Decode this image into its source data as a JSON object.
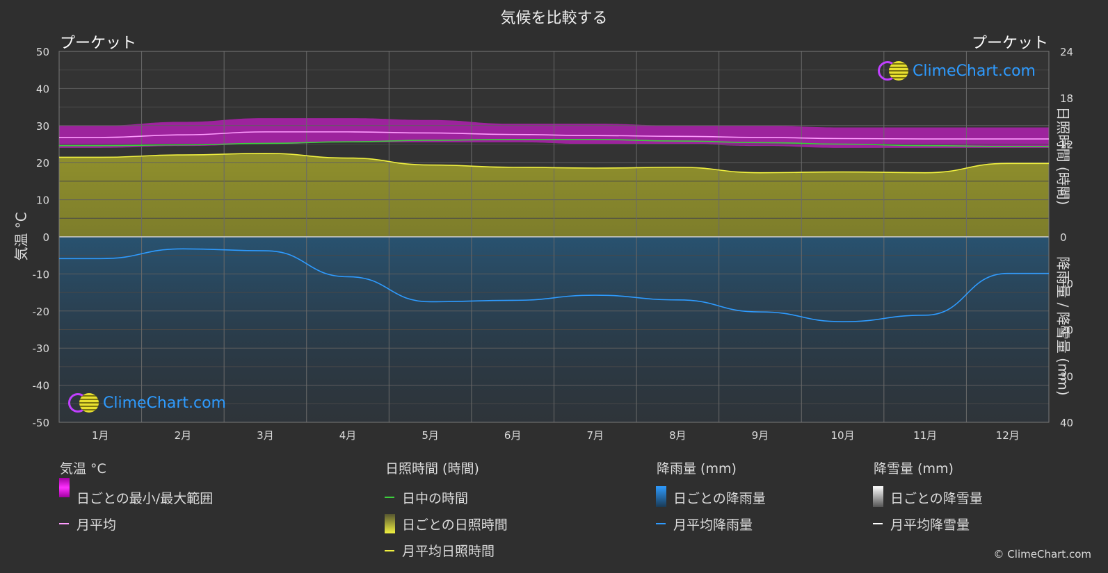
{
  "title": "気候を比較する",
  "location_left": "プーケット",
  "location_right": "プーケット",
  "logo_text": "ClimeChart.com",
  "copyright": "© ClimeChart.com",
  "axes": {
    "left_title": "気温 °C",
    "right_top_title": "日照時間 (時間)",
    "right_bottom_title": "降雨量 / 降雪量 (mm)",
    "left_ticks": [
      "50",
      "40",
      "30",
      "20",
      "10",
      "0",
      "-10",
      "-20",
      "-30",
      "-40",
      "-50"
    ],
    "right_top_ticks": [
      "24",
      "18",
      "12",
      "6",
      "0"
    ],
    "right_bottom_ticks": [
      "10",
      "20",
      "30",
      "40"
    ]
  },
  "legend": {
    "temperature": {
      "title": "気温 °C",
      "range": "日ごとの最小/最大範囲",
      "avg": "月平均"
    },
    "sunshine": {
      "title": "日照時間 (時間)",
      "daylight": "日中の時間",
      "daily": "日ごとの日照時間",
      "avg": "月平均日照時間"
    },
    "rain": {
      "title": "降雨量 (mm)",
      "daily": "日ごとの降雨量",
      "avg": "月平均降雨量"
    },
    "snow": {
      "title": "降雪量 (mm)",
      "daily": "日ごとの降雪量",
      "avg": "月平均降雪量"
    }
  },
  "colors": {
    "background": "#2f2f2f",
    "temp_range": "#d42bd4",
    "temp_avg": "#ff9cff",
    "daylight": "#3ccf3c",
    "sunshine_fill": "#8f8f2a",
    "sunshine_avg": "#f0f040",
    "rain_fill": "#1f5f8f",
    "rain_avg": "#2e9bff",
    "snow": "#ffffff"
  },
  "chart_data": {
    "type": "line",
    "categories": [
      "1月",
      "2月",
      "3月",
      "4月",
      "5月",
      "6月",
      "7月",
      "8月",
      "9月",
      "10月",
      "11月",
      "12月"
    ],
    "temperature_ylim": [
      -50,
      50
    ],
    "sunshine_ylim_hours": [
      0,
      24
    ],
    "precip_ylim_mm": [
      0,
      40
    ],
    "series": [
      {
        "name": "日ごとの最小/最大範囲",
        "axis": "temperature",
        "min": [
          24,
          24.5,
          25,
          25.5,
          25.5,
          25.5,
          25,
          25,
          24.5,
          24,
          24,
          24
        ],
        "max": [
          30,
          31,
          32,
          32,
          31.5,
          30.5,
          30.5,
          30,
          30,
          29.5,
          29.5,
          29.5
        ]
      },
      {
        "name": "月平均",
        "axis": "temperature",
        "values": [
          26.8,
          27.5,
          28.3,
          28.3,
          28,
          27.6,
          27.3,
          27.1,
          26.8,
          26.5,
          26.4,
          26.4
        ]
      },
      {
        "name": "日中の時間",
        "axis": "sunshine",
        "values": [
          11.8,
          11.9,
          12.1,
          12.3,
          12.5,
          12.6,
          12.6,
          12.4,
          12.2,
          12.0,
          11.8,
          11.7
        ]
      },
      {
        "name": "月平均日照時間",
        "axis": "sunshine",
        "values": [
          10.3,
          10.6,
          10.8,
          10.2,
          9.3,
          9.0,
          8.9,
          9.0,
          8.3,
          8.4,
          8.3,
          9.5
        ]
      },
      {
        "name": "月平均降雨量",
        "axis": "precip",
        "values": [
          4.7,
          2.6,
          3.0,
          8.6,
          14.0,
          13.7,
          12.6,
          13.6,
          16.2,
          18.3,
          16.9,
          7.9
        ]
      },
      {
        "name": "月平均降雪量",
        "axis": "precip",
        "values": [
          0,
          0,
          0,
          0,
          0,
          0,
          0,
          0,
          0,
          0,
          0,
          0
        ]
      }
    ]
  }
}
